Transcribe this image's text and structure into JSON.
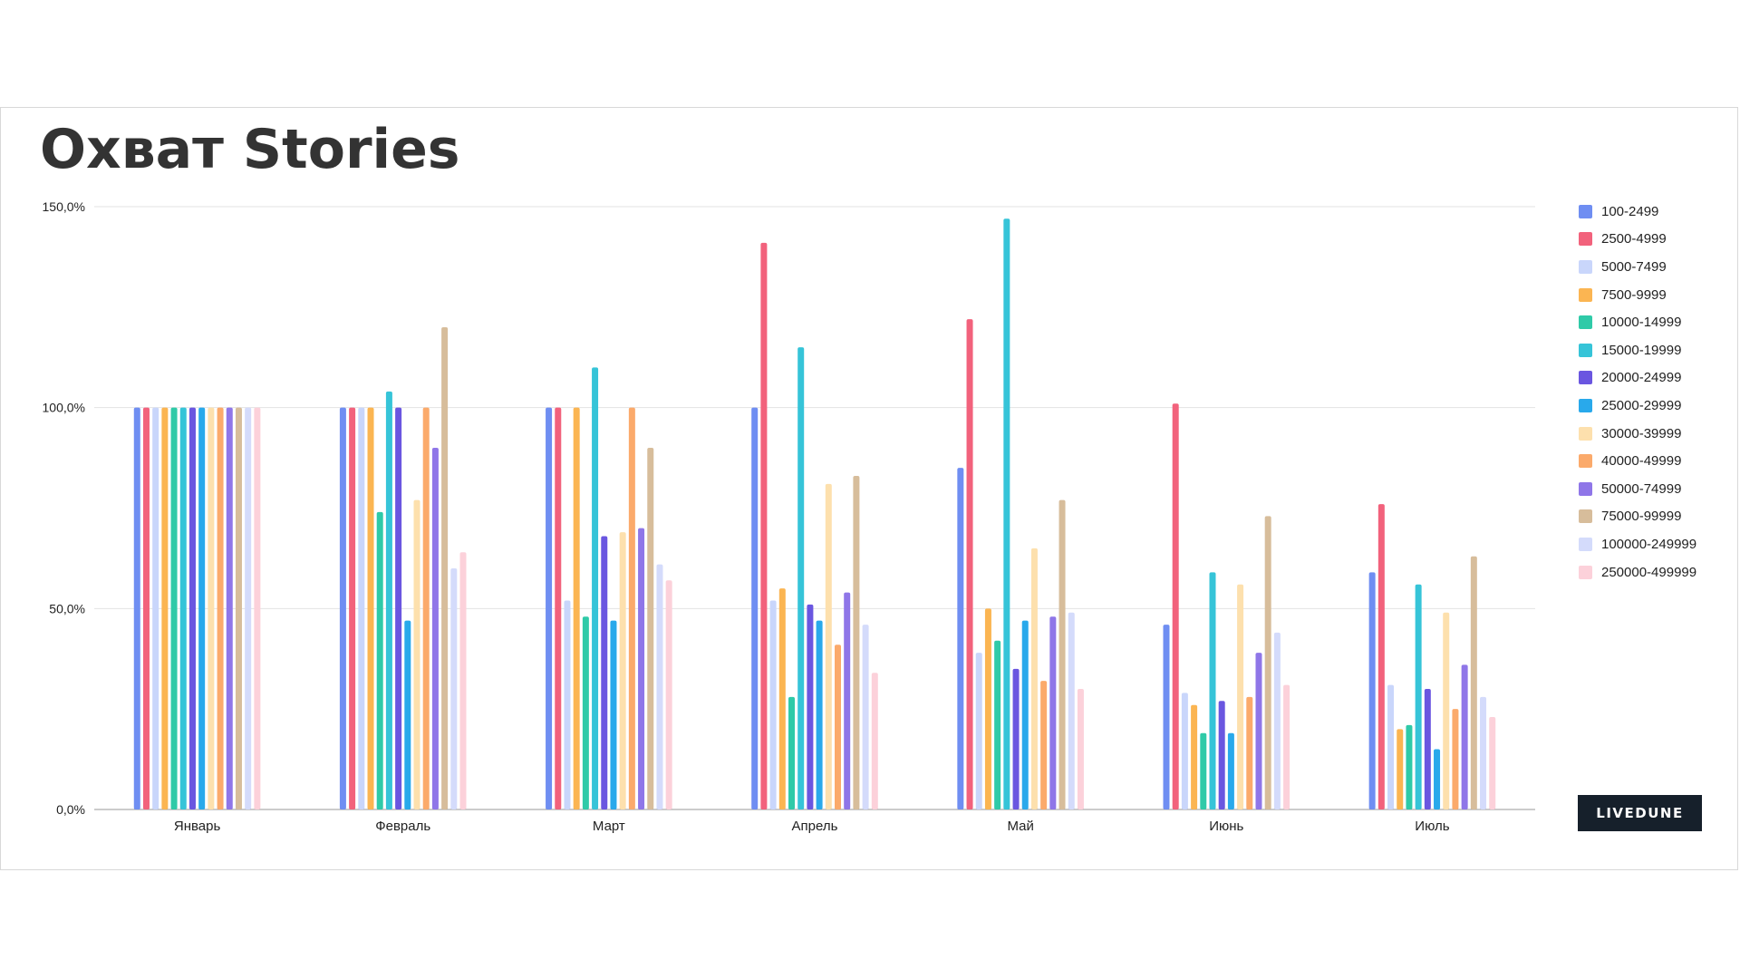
{
  "chart_data": {
    "type": "bar",
    "title": "Охват Stories",
    "xlabel": "",
    "ylabel": "",
    "ylim": [
      0,
      150
    ],
    "yticks": [
      "0,0%",
      "50,0%",
      "100,0%",
      "150,0%"
    ],
    "ytick_values": [
      0,
      50,
      100,
      150
    ],
    "grid": true,
    "legend_position": "right",
    "categories": [
      "Январь",
      "Февраль",
      "Март",
      "Апрель",
      "Май",
      "Июнь",
      "Июль"
    ],
    "series": [
      {
        "name": "100-2499",
        "color": "#6f8ef2",
        "values": [
          100,
          100,
          100,
          100,
          85,
          46,
          59
        ]
      },
      {
        "name": "2500-4999",
        "color": "#f2627c",
        "values": [
          100,
          100,
          100,
          141,
          122,
          101,
          76
        ]
      },
      {
        "name": "5000-7499",
        "color": "#c9d6fb",
        "values": [
          100,
          100,
          52,
          52,
          39,
          29,
          31
        ]
      },
      {
        "name": "7500-9999",
        "color": "#fbb552",
        "values": [
          100,
          100,
          100,
          55,
          50,
          26,
          20
        ]
      },
      {
        "name": "10000-14999",
        "color": "#2fcaa8",
        "values": [
          100,
          74,
          48,
          28,
          42,
          19,
          21
        ]
      },
      {
        "name": "15000-19999",
        "color": "#36c4d8",
        "values": [
          100,
          104,
          110,
          115,
          147,
          59,
          56
        ]
      },
      {
        "name": "20000-24999",
        "color": "#6a56e0",
        "values": [
          100,
          100,
          68,
          51,
          35,
          27,
          30
        ]
      },
      {
        "name": "25000-29999",
        "color": "#29a9eb",
        "values": [
          100,
          47,
          47,
          47,
          47,
          19,
          15
        ]
      },
      {
        "name": "30000-39999",
        "color": "#fde0ad",
        "values": [
          100,
          77,
          69,
          81,
          65,
          56,
          49
        ]
      },
      {
        "name": "40000-49999",
        "color": "#fbaa6b",
        "values": [
          100,
          100,
          100,
          41,
          32,
          28,
          25
        ]
      },
      {
        "name": "50000-74999",
        "color": "#8f76e8",
        "values": [
          100,
          90,
          70,
          54,
          48,
          39,
          36
        ]
      },
      {
        "name": "75000-99999",
        "color": "#d7bd9b",
        "values": [
          100,
          120,
          90,
          83,
          77,
          73,
          63
        ]
      },
      {
        "name": "100000-249999",
        "color": "#d4dbfb",
        "values": [
          100,
          60,
          61,
          46,
          49,
          44,
          28
        ]
      },
      {
        "name": "250000-499999",
        "color": "#fcd1da",
        "values": [
          100,
          64,
          57,
          34,
          30,
          31,
          23
        ]
      }
    ]
  },
  "brand": {
    "logo_text": "LIVEDUNE"
  }
}
